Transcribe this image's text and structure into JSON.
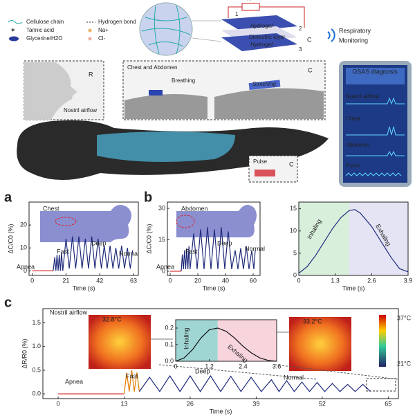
{
  "diagram": {
    "legend": [
      "Cellulose chain",
      "Tannic acid",
      "Glycerine/H2O",
      "Hydrogen bond",
      "Na+",
      "Cl-"
    ],
    "device": {
      "resistor": "R",
      "layers": [
        "Hydrogel",
        "Dielectric layer",
        "Hydrogel"
      ],
      "ports": [
        "1",
        "2",
        "3"
      ],
      "capacitor": "C"
    },
    "title": [
      "Respiratory",
      "Monitoring"
    ],
    "nostril": {
      "label": "Nostril airflow",
      "signal": "R"
    },
    "chest": {
      "title": "Chest and Abdomen",
      "breathing": "Breathing",
      "stretching": "Streching",
      "signal": "C"
    },
    "pulse": {
      "label": "Pulse",
      "signal": "C"
    },
    "osas": {
      "title": "OSAS diagnosis",
      "rows": [
        "Nostril airflow",
        "Chest",
        "Abdomen",
        "Pulse"
      ]
    },
    "panels": [
      "a",
      "b",
      "c"
    ]
  },
  "chart_data": [
    {
      "type": "line",
      "ylabel": "ΔC/C0 (%)",
      "xlabel": "Time (s)",
      "annotations": [
        "Chest",
        "Apnea",
        "Fast",
        "Deep",
        "Normal"
      ],
      "xlim": [
        -2,
        66
      ],
      "xticks": [
        0,
        21,
        42,
        63
      ],
      "ylim": [
        -2,
        30
      ],
      "yticks": [
        0,
        10,
        20
      ],
      "series": [
        {
          "color": "#d62728",
          "x": [
            0,
            13
          ],
          "values": [
            0,
            0
          ]
        },
        {
          "color": "#1f2a7a",
          "x": [
            13,
            14,
            14.7,
            15.4,
            16.1,
            16.8,
            17.5,
            18.2,
            19,
            21,
            23,
            25,
            27,
            29,
            31,
            33,
            35,
            37,
            39,
            41,
            43,
            44.8,
            46.6,
            48.4,
            50.2,
            52,
            53.8,
            55.6,
            57.4,
            59.2,
            61,
            62.5
          ],
          "values": [
            0,
            6,
            0,
            7,
            0,
            7,
            0,
            8,
            0,
            14,
            1,
            15,
            1,
            15,
            1,
            14,
            1,
            15,
            1,
            14,
            1,
            11,
            1,
            11,
            1,
            10,
            1,
            11,
            1,
            10,
            1,
            9
          ]
        }
      ]
    },
    {
      "type": "line",
      "ylabel": "ΔC/C0 (%)",
      "xlabel": "Time (s)",
      "annotations": [
        "Abdomen",
        "Apnea",
        "Fast",
        "Deep",
        "Normal"
      ],
      "xlim": [
        -2,
        65
      ],
      "xticks": [
        0,
        20,
        40,
        60
      ],
      "ylim": [
        -2,
        33
      ],
      "yticks": [
        0,
        15,
        30
      ],
      "series": [
        {
          "color": "#d62728",
          "x": [
            0,
            8
          ],
          "values": [
            0,
            0
          ]
        },
        {
          "color": "#1f2a7a",
          "x": [
            8,
            8.8,
            9.6,
            10.4,
            11.2,
            12,
            12.8,
            13.6,
            14.4,
            17,
            19.5,
            22,
            24.5,
            27,
            29.5,
            32,
            34.5,
            37,
            39.5,
            42,
            44.5,
            47,
            49,
            51,
            53,
            55,
            57,
            59,
            60.5,
            61.5
          ],
          "values": [
            0,
            8,
            1,
            10,
            1,
            11,
            1,
            12,
            1,
            18,
            1,
            20,
            1,
            21,
            1,
            20,
            1,
            21,
            1,
            19,
            1,
            10,
            1,
            11,
            1,
            12,
            1,
            10,
            1,
            10
          ]
        }
      ]
    },
    {
      "type": "line",
      "xlabel": "Time (s)",
      "annotations": [
        "Inhaling",
        "Exhaling"
      ],
      "xlim": [
        0,
        3.9
      ],
      "xticks": [
        0,
        1.3,
        2.6,
        3.9
      ],
      "ylim": [
        0,
        16.5
      ],
      "yticks": [
        0,
        5,
        10,
        15
      ],
      "regions": [
        {
          "x": [
            0,
            1.8
          ],
          "color": "#d8efdc"
        },
        {
          "x": [
            1.8,
            3.9
          ],
          "color": "#e4e4f4"
        }
      ],
      "series": [
        {
          "color": "#1f2a7a",
          "x": [
            0,
            0.3,
            0.6,
            0.9,
            1.2,
            1.5,
            1.8,
            2.0,
            2.2,
            2.6,
            3.0,
            3.3,
            3.6,
            3.9
          ],
          "values": [
            0.5,
            2,
            4.5,
            7.5,
            10.5,
            13,
            14.6,
            14.8,
            14,
            11,
            7,
            4,
            1.5,
            0.8
          ]
        }
      ]
    },
    {
      "type": "line",
      "ylabel": "ΔR/R0 (%)",
      "xlabel": "Time (s)",
      "annotations": [
        "Nostril airflow",
        "Apnea",
        "Fast",
        "Deep",
        "Normal",
        "32.8°C",
        "33.2°C",
        "37°C",
        "21°C"
      ],
      "xlim": [
        -3,
        67
      ],
      "xticks": [
        0,
        13,
        26,
        39,
        52,
        65
      ],
      "ylim": [
        -0.1,
        1.8
      ],
      "yticks": [
        {
          "value": 0,
          "label": "0.0"
        },
        0.5,
        {
          "value": 1,
          "label": "1.0"
        },
        1.5
      ],
      "series": [
        {
          "color": "#d62728",
          "x": [
            0,
            13
          ],
          "values": [
            0,
            0
          ]
        },
        {
          "color": "#e07b00",
          "x": [
            13,
            13.5,
            14,
            14.5,
            15,
            15.5,
            16
          ],
          "values": [
            0,
            0.45,
            0.05,
            0.5,
            0.05,
            0.45,
            0.05
          ]
        },
        {
          "color": "#1f2a7a",
          "x": [
            16,
            18,
            20,
            22,
            24,
            26,
            28,
            30,
            32,
            34,
            36,
            38,
            40,
            42,
            43.5,
            45,
            46.5,
            48,
            49.5,
            51,
            52.5,
            54,
            55.5,
            57,
            58.5,
            60,
            61.5
          ],
          "values": [
            0.05,
            0.35,
            0.05,
            0.38,
            0.05,
            0.38,
            0.05,
            0.38,
            0.05,
            0.37,
            0.05,
            0.35,
            0.05,
            0.3,
            0.05,
            0.28,
            0.05,
            0.25,
            0.05,
            0.24,
            0.05,
            0.22,
            0.05,
            0.2,
            0.05,
            0.2,
            0.05
          ]
        }
      ]
    },
    {
      "type": "line",
      "annotations": [
        "Inhaling",
        "Exhaling"
      ],
      "xlim": [
        0,
        3.6
      ],
      "xticks": [
        0,
        1.2,
        2.4,
        3.6
      ],
      "ylim": [
        0,
        0.25
      ],
      "yticks": [
        {
          "value": 0,
          "label": "0.0"
        },
        0.1,
        0.2
      ],
      "regions": [
        {
          "x": [
            0,
            1.5
          ],
          "color": "#9fd6d3"
        },
        {
          "x": [
            1.5,
            3.6
          ],
          "color": "#f8d4dc"
        }
      ],
      "series": [
        {
          "color": "#111111",
          "x": [
            0,
            0.3,
            0.6,
            0.9,
            1.2,
            1.5,
            1.8,
            2.1,
            2.4,
            2.7,
            3.0,
            3.3,
            3.6
          ],
          "values": [
            0,
            0.02,
            0.07,
            0.14,
            0.19,
            0.2,
            0.18,
            0.14,
            0.09,
            0.05,
            0.02,
            0.005,
            0
          ]
        }
      ]
    }
  ]
}
